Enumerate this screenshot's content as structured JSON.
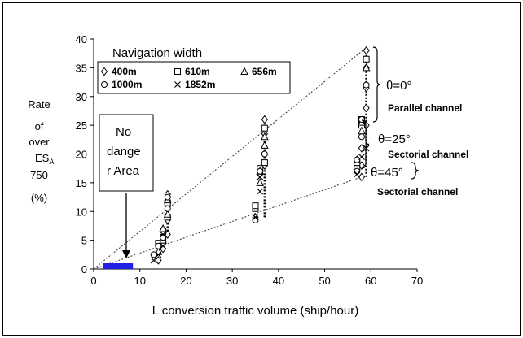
{
  "chart_data": {
    "type": "scatter",
    "xlabel": "L conversion traffic volume (ship/hour)",
    "ylabel_lines": [
      "Rate",
      "of",
      "over",
      "ES",
      "750",
      "(%)"
    ],
    "ylabel_sub": "A",
    "xlim": [
      0,
      70
    ],
    "ylim": [
      0,
      40
    ],
    "xticks": [
      0,
      10,
      20,
      30,
      40,
      50,
      60,
      70
    ],
    "yticks": [
      0,
      5,
      10,
      15,
      20,
      25,
      30,
      35,
      40
    ],
    "legend_title": "Navigation width",
    "series": [
      {
        "name": "400m",
        "marker": "diamond",
        "points": [
          [
            14,
            1.5
          ],
          [
            15,
            3.5
          ],
          [
            16,
            6
          ],
          [
            16,
            8.5
          ],
          [
            16,
            11
          ],
          [
            16,
            13
          ],
          [
            35,
            9
          ],
          [
            36,
            16.5
          ],
          [
            37,
            18
          ],
          [
            37,
            20
          ],
          [
            37,
            23.5
          ],
          [
            37,
            26
          ],
          [
            58,
            16
          ],
          [
            58,
            18
          ],
          [
            58,
            21
          ],
          [
            59,
            25
          ],
          [
            59,
            28
          ],
          [
            59,
            31.5
          ],
          [
            59,
            35
          ],
          [
            59,
            38
          ]
        ]
      },
      {
        "name": "610m",
        "marker": "square",
        "points": [
          [
            14,
            4.5
          ],
          [
            15,
            5
          ],
          [
            15,
            6.5
          ],
          [
            16,
            9
          ],
          [
            16,
            11.5
          ],
          [
            35,
            10.5
          ],
          [
            35,
            11
          ],
          [
            36,
            17.5
          ],
          [
            37,
            18.5
          ],
          [
            37,
            24.5
          ],
          [
            57,
            17.5
          ],
          [
            57,
            18.5
          ],
          [
            58,
            25
          ],
          [
            58,
            26
          ],
          [
            59,
            36.5
          ]
        ]
      },
      {
        "name": "656m",
        "marker": "triangle",
        "points": [
          [
            14,
            3
          ],
          [
            15,
            5
          ],
          [
            15,
            7
          ],
          [
            16,
            9.5
          ],
          [
            16,
            12
          ],
          [
            36,
            15
          ],
          [
            36,
            17
          ],
          [
            37,
            21.5
          ],
          [
            37,
            23
          ],
          [
            57,
            19
          ],
          [
            58,
            24
          ],
          [
            58,
            25.5
          ],
          [
            59,
            35
          ]
        ]
      },
      {
        "name": "1000m",
        "marker": "pentagon",
        "points": [
          [
            13,
            2.5
          ],
          [
            14,
            4
          ],
          [
            15,
            5.5
          ],
          [
            16,
            10.5
          ],
          [
            16,
            12.5
          ],
          [
            35,
            8.5
          ],
          [
            36,
            17
          ],
          [
            37,
            20
          ],
          [
            57,
            17
          ],
          [
            57,
            19
          ],
          [
            58,
            23
          ],
          [
            58,
            26
          ],
          [
            59,
            32
          ]
        ]
      },
      {
        "name": "1852m",
        "marker": "x",
        "points": [
          [
            13,
            1.5
          ],
          [
            14,
            2.5
          ],
          [
            15,
            4
          ],
          [
            15,
            6
          ],
          [
            35,
            9
          ],
          [
            36,
            13.5
          ],
          [
            36,
            16
          ],
          [
            57,
            16.5
          ],
          [
            58,
            19.5
          ],
          [
            59,
            21
          ]
        ]
      }
    ],
    "trendlines": [
      {
        "from": [
          0,
          0
        ],
        "to": [
          59,
          38.5
        ]
      },
      {
        "from": [
          0,
          0
        ],
        "to": [
          58,
          16
        ]
      }
    ],
    "annotations": {
      "danger_box_lines": [
        "No",
        "dange",
        "r Area"
      ],
      "danger_zone": {
        "x": [
          2,
          8.5
        ],
        "color": "#1f1fe6"
      },
      "theta0": "θ=0°",
      "theta0_label": "Parallel channel",
      "theta25": "θ=25°",
      "theta25_label": "Sectorial channel",
      "theta45": "θ=45°",
      "theta45_label": "Sectorial channel"
    },
    "grid": false,
    "legend_position": "top-left"
  }
}
